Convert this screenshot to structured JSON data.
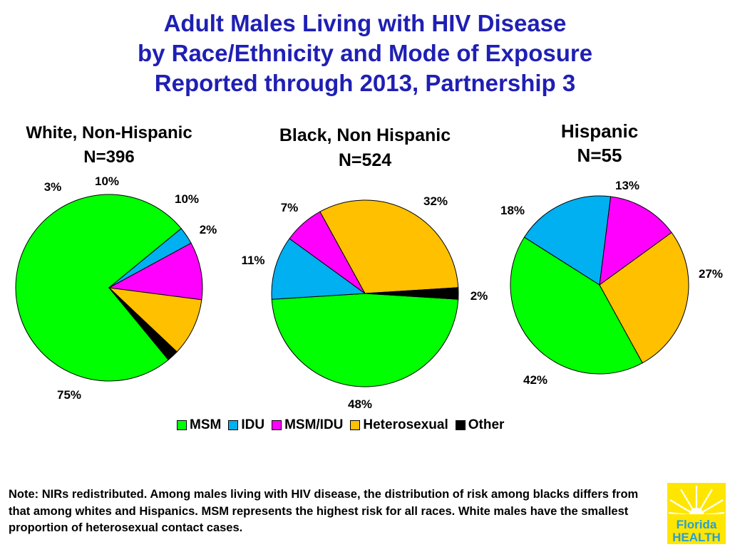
{
  "title": {
    "line1": "Adult Males Living with HIV Disease",
    "line2": "by Race/Ethnicity and Mode of Exposure",
    "line3": "Reported through 2013, Partnership 3"
  },
  "colors": {
    "MSM": "#00ff00",
    "IDU": "#00b0f0",
    "MSM/IDU": "#ff00ff",
    "Heterosexual": "#ffc000",
    "Other": "#000000",
    "title": "#1f1fb4"
  },
  "chart_data": [
    {
      "type": "pie",
      "title": [
        "White, Non-Hispanic",
        "N=396"
      ],
      "categories": [
        "MSM",
        "IDU",
        "MSM/IDU",
        "Heterosexual",
        "Other"
      ],
      "values": [
        75,
        3,
        10,
        10,
        2
      ],
      "labels": [
        "75%",
        "3%",
        "10%",
        "10%",
        "2%"
      ]
    },
    {
      "type": "pie",
      "title": [
        "Black, Non Hispanic",
        "N=524"
      ],
      "categories": [
        "MSM",
        "IDU",
        "MSM/IDU",
        "Heterosexual",
        "Other"
      ],
      "values": [
        48,
        11,
        7,
        32,
        2
      ],
      "labels": [
        "48%",
        "11%",
        "7%",
        "32%",
        "2%"
      ]
    },
    {
      "type": "pie",
      "title": [
        "Hispanic",
        "N=55"
      ],
      "categories": [
        "MSM",
        "IDU",
        "MSM/IDU",
        "Heterosexual",
        "Other"
      ],
      "values": [
        42,
        18,
        13,
        27,
        0
      ],
      "labels": [
        "42%",
        "18%",
        "13%",
        "27%",
        ""
      ]
    }
  ],
  "legend": [
    "MSM",
    "IDU",
    "MSM/IDU",
    "Heterosexual",
    "Other"
  ],
  "note": "Note: NIRs redistributed.   Among males living with HIV disease, the distribution of risk among blacks differs from that among whites and Hispanics.  MSM represents the highest risk for all races.  White males have the smallest proportion of heterosexual contact cases.",
  "logo": {
    "line1": "Florida",
    "line2": "HEALTH"
  }
}
